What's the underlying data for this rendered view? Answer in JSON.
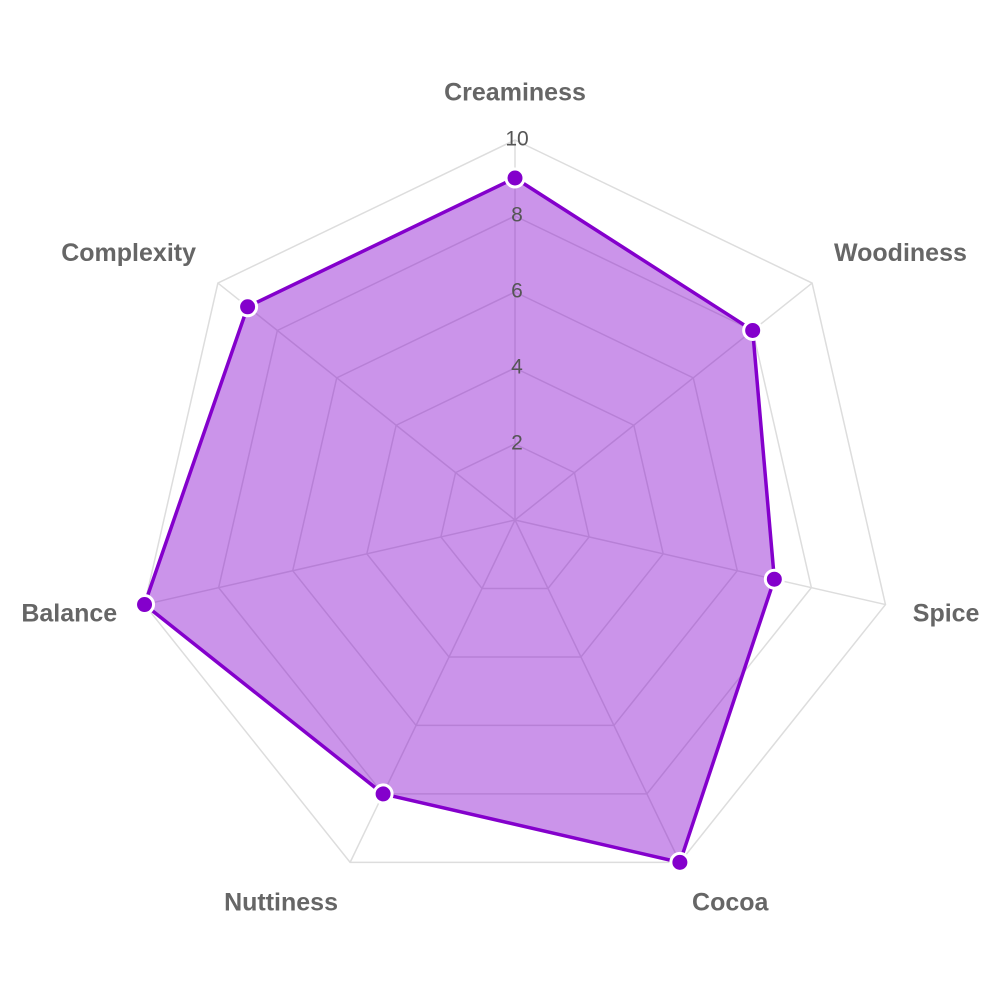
{
  "chart_data": {
    "type": "radar",
    "categories": [
      "Creaminess",
      "Woodiness",
      "Spice",
      "Cocoa",
      "Nuttiness",
      "Balance",
      "Complexity"
    ],
    "values": [
      9,
      8,
      7,
      10,
      8,
      10,
      9
    ],
    "color": "#8400cc",
    "rlim": [
      0,
      10
    ],
    "rticks": [
      2,
      4,
      6,
      8,
      10
    ],
    "grid": true
  }
}
